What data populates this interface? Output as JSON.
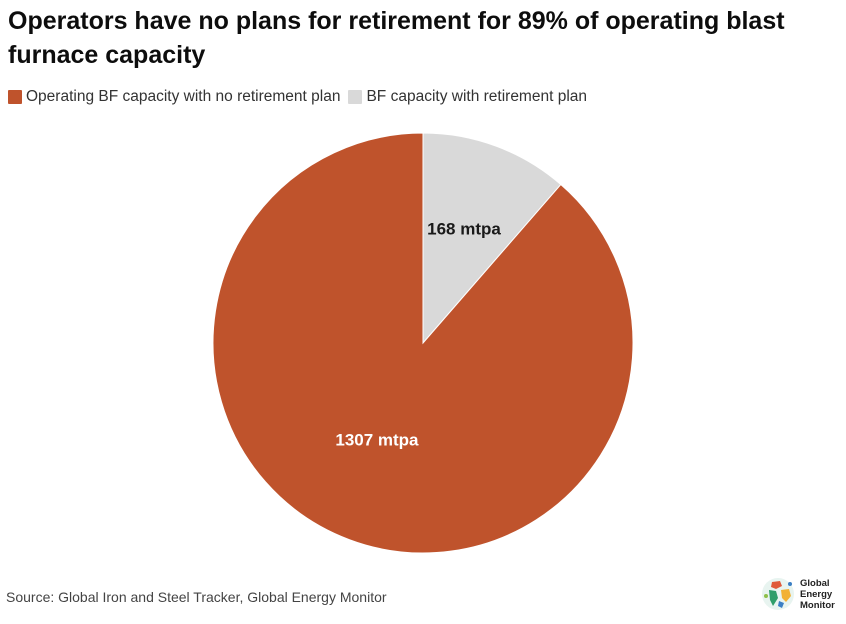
{
  "chart_data": {
    "type": "pie",
    "title": "Operators have no plans for retirement for 89% of operating blast furnace capacity",
    "unit": "mtpa",
    "slices": [
      {
        "name": "BF capacity with retirement plan",
        "value": 168,
        "label": "168 mtpa",
        "color": "#d9d9d9"
      },
      {
        "name": "Operating BF capacity with no retirement plan",
        "value": 1307,
        "label": "1307 mtpa",
        "color": "#bf532c"
      }
    ],
    "legend": [
      {
        "label": "Operating BF capacity with no retirement plan",
        "color": "#bf532c"
      },
      {
        "label": "BF capacity with retirement plan",
        "color": "#d9d9d9"
      }
    ],
    "legend_position": "top-left",
    "start": "12 o'clock, clockwise"
  },
  "footer": {
    "source": "Source: Global Iron and Steel Tracker, Global Energy Monitor",
    "logo_line1": "Global",
    "logo_line2": "Energy",
    "logo_line3": "Monitor"
  }
}
